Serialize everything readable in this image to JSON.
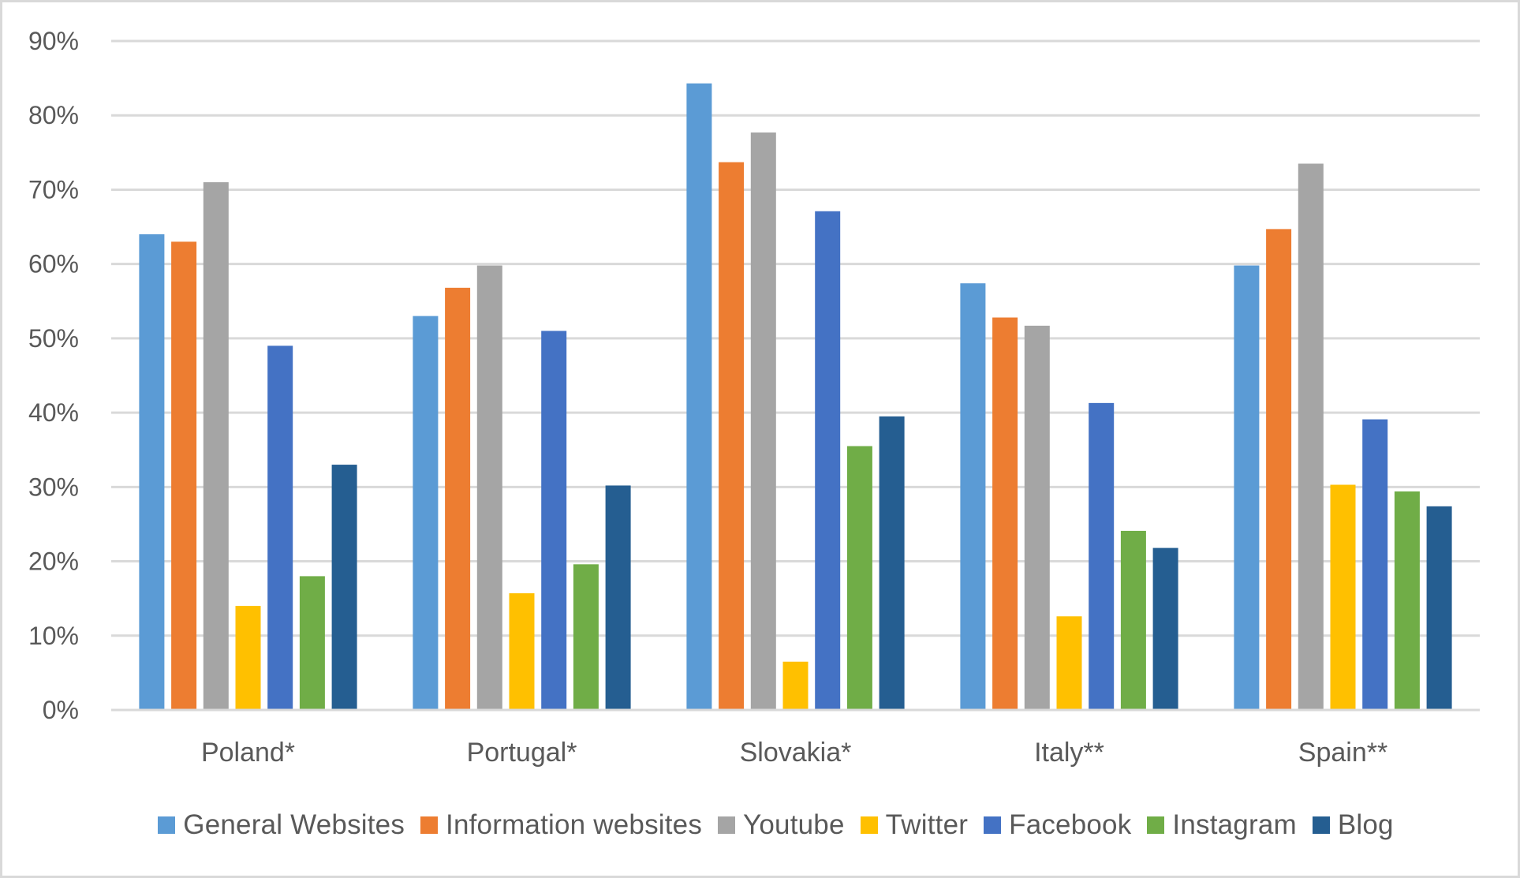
{
  "chart_data": {
    "type": "bar",
    "title": "",
    "xlabel": "",
    "ylabel": "",
    "ylim": [
      0,
      90
    ],
    "yticks": [
      "0%",
      "10%",
      "20%",
      "30%",
      "40%",
      "50%",
      "60%",
      "70%",
      "80%",
      "90%"
    ],
    "grid": true,
    "legend_position": "bottom",
    "categories": [
      "Poland*",
      "Portugal*",
      "Slovakia*",
      "Italy**",
      "Spain**"
    ],
    "series": [
      {
        "name": "General Websites",
        "color": "#5B9BD5",
        "values": [
          64,
          53,
          84.3,
          57.4,
          59.8
        ]
      },
      {
        "name": "Information websites",
        "color": "#ED7D31",
        "values": [
          63,
          56.8,
          73.7,
          52.8,
          64.7
        ]
      },
      {
        "name": "Youtube",
        "color": "#A5A5A5",
        "values": [
          71,
          59.8,
          77.7,
          51.7,
          73.5
        ]
      },
      {
        "name": "Twitter",
        "color": "#FFC000",
        "values": [
          14,
          15.7,
          6.5,
          12.6,
          30.3
        ]
      },
      {
        "name": "Facebook",
        "color": "#4472C4",
        "values": [
          49,
          51,
          67.1,
          41.3,
          39.1
        ]
      },
      {
        "name": "Instagram",
        "color": "#70AD47",
        "values": [
          18,
          19.6,
          35.5,
          24.1,
          29.4
        ]
      },
      {
        "name": "Blog",
        "color": "#255E91",
        "values": [
          33,
          30.2,
          39.5,
          21.8,
          27.4
        ]
      }
    ]
  },
  "legend": {
    "items": [
      {
        "label": "General Websites",
        "color": "#5B9BD5"
      },
      {
        "label": "Information websites",
        "color": "#ED7D31"
      },
      {
        "label": "Youtube",
        "color": "#A5A5A5"
      },
      {
        "label": "Twitter",
        "color": "#FFC000"
      },
      {
        "label": "Facebook",
        "color": "#4472C4"
      },
      {
        "label": "Instagram",
        "color": "#70AD47"
      },
      {
        "label": "Blog",
        "color": "#255E91"
      }
    ]
  },
  "style": {
    "gridline_color": "#D9D9D9",
    "text_color": "#595959",
    "border_color": "#D9D9D9"
  }
}
